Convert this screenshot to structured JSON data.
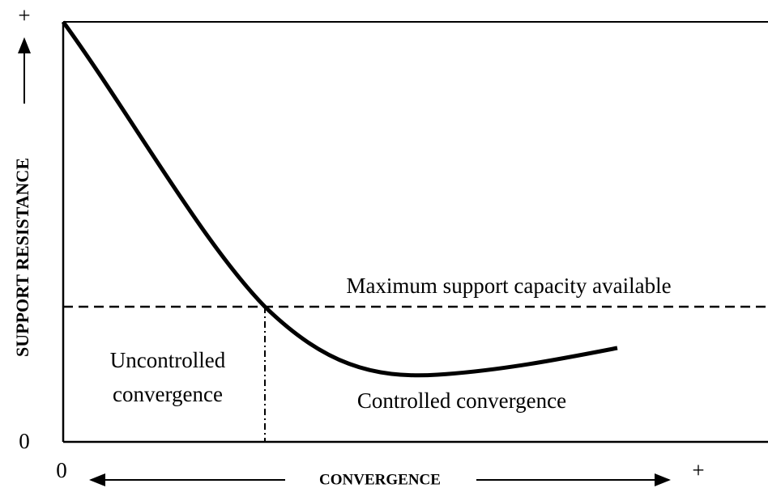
{
  "y_axis": {
    "label": "SUPPORT RESISTANCE",
    "min_label": "0",
    "max_label": "+"
  },
  "x_axis": {
    "label": "CONVERGENCE",
    "min_label": "0",
    "max_label": "+"
  },
  "annotations": {
    "capacity": "Maximum support capacity available",
    "uncontrolled": [
      "Uncontrolled",
      "convergence"
    ],
    "controlled": "Controlled convergence"
  }
}
